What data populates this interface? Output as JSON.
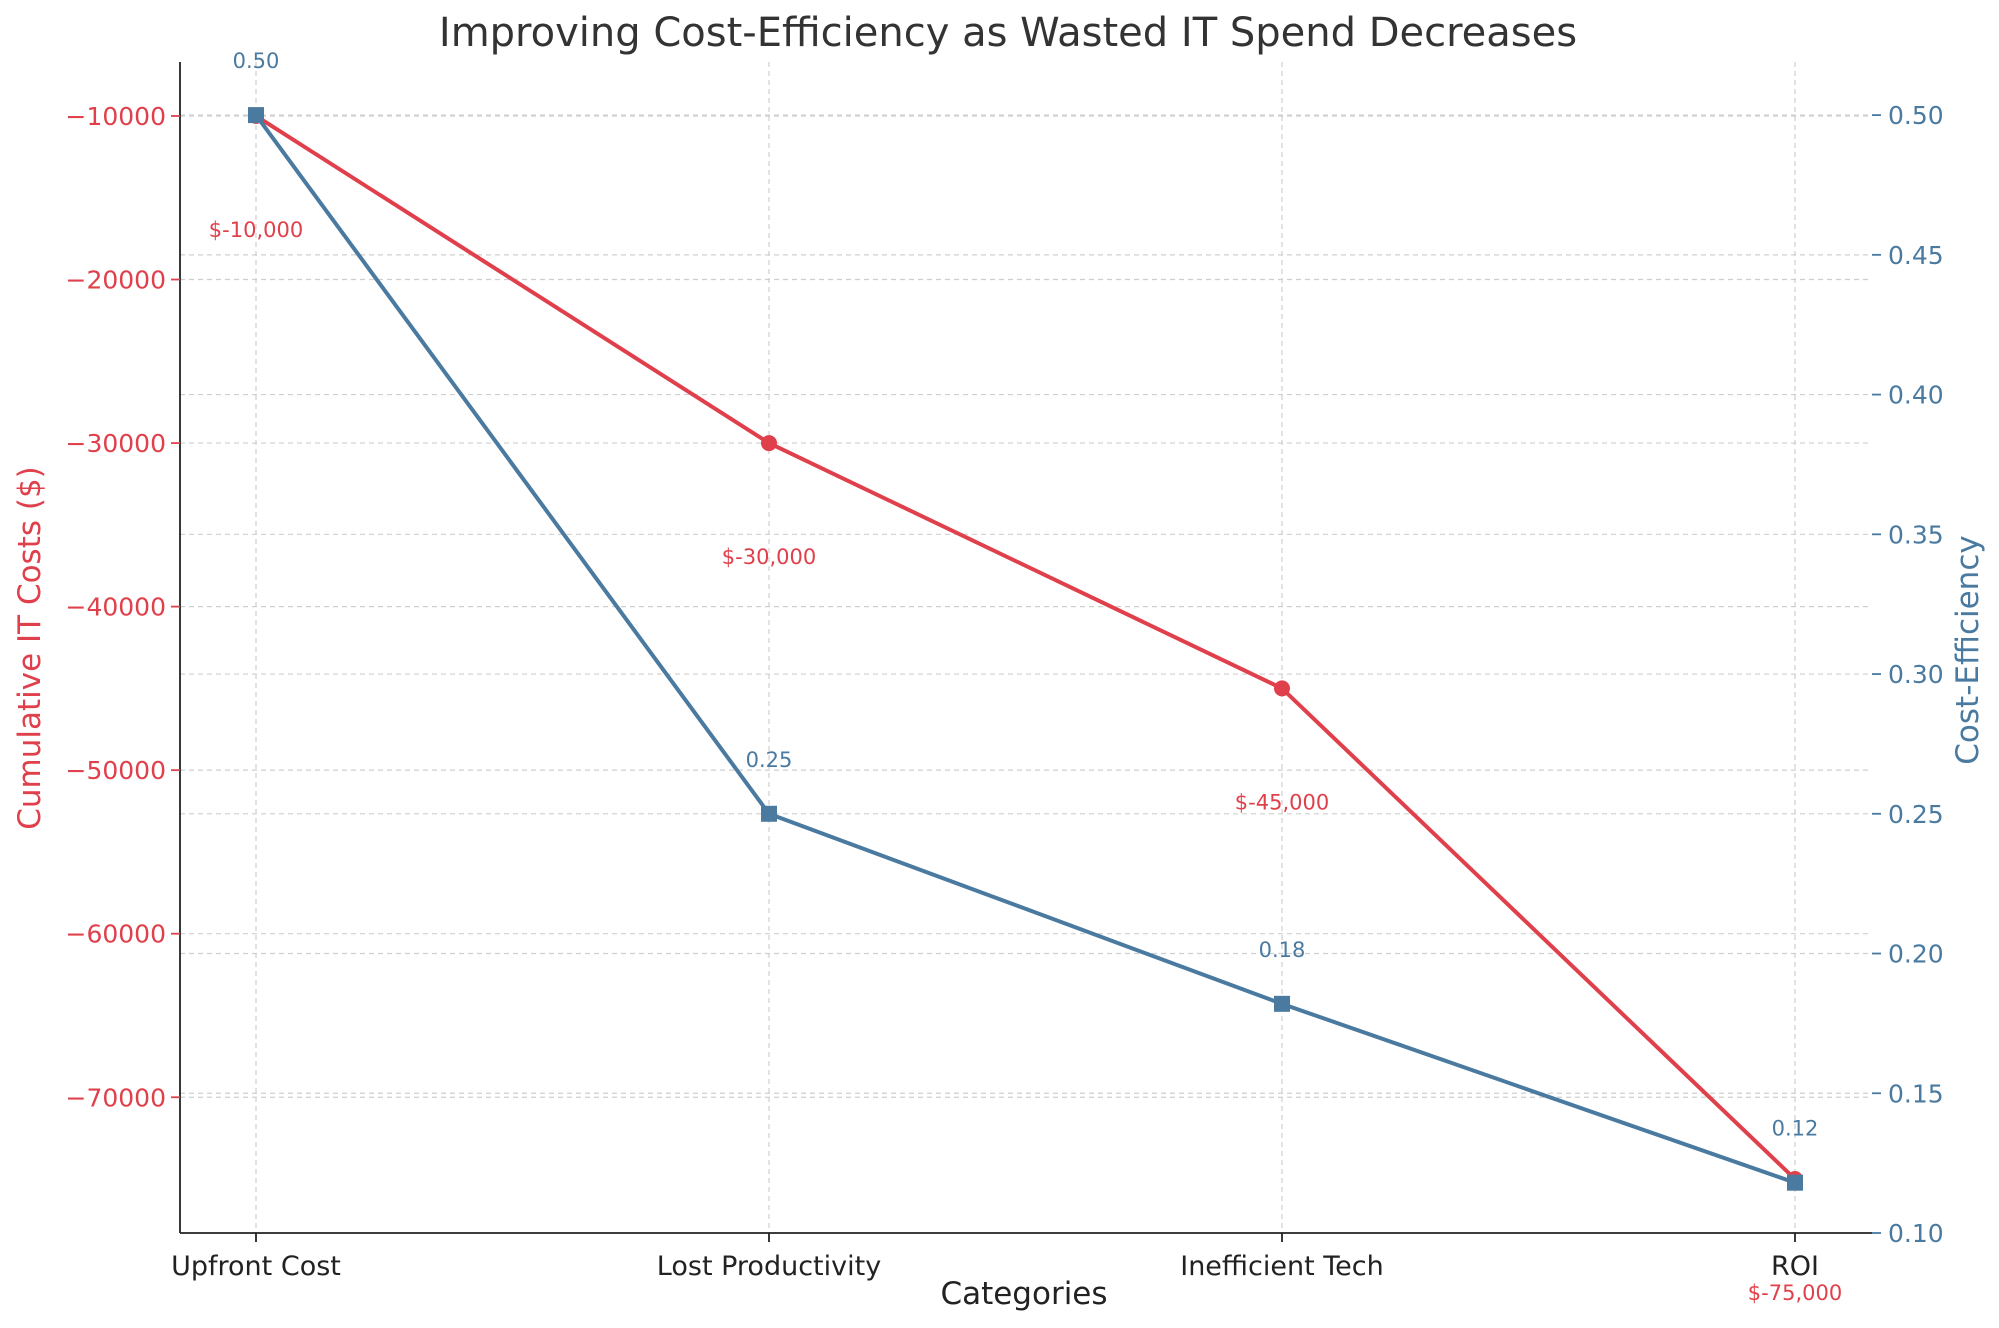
{
  "chart_data": {
    "type": "line",
    "title": "Improving Cost-Efficiency as Wasted IT Spend Decreases",
    "xlabel": "Categories",
    "categories": [
      "Upfront Cost",
      "Lost Productivity",
      "Inefficient Tech",
      "ROI"
    ],
    "grid": true,
    "legend": "none",
    "left_axis": {
      "label": "Cumulative IT Costs ($)",
      "color": "#e0404b",
      "range": [
        -78300,
        -6700
      ],
      "ticks": [
        -10000,
        -20000,
        -30000,
        -40000,
        -50000,
        -60000,
        -70000
      ],
      "tick_labels": [
        "−10000",
        "−20000",
        "−30000",
        "−40000",
        "−50000",
        "−60000",
        "−70000"
      ]
    },
    "right_axis": {
      "label": "Cost-Efficiency",
      "color": "#4a7aa0",
      "range": [
        0.1,
        0.519
      ],
      "ticks": [
        0.5,
        0.45,
        0.4,
        0.35,
        0.3,
        0.25,
        0.2,
        0.15,
        0.1
      ],
      "tick_labels": [
        "0.50",
        "0.45",
        "0.40",
        "0.35",
        "0.30",
        "0.25",
        "0.20",
        "0.15",
        "0.10"
      ]
    },
    "series": [
      {
        "axis": "left",
        "color": "#e0404b",
        "marker": "circle",
        "values": [
          -10000,
          -30000,
          -45000,
          -75000
        ],
        "data_labels": [
          "$-10,000",
          "$-30,000",
          "$-45,000",
          "$-75,000"
        ]
      },
      {
        "axis": "right",
        "color": "#4a7aa0",
        "marker": "square",
        "values": [
          0.5,
          0.25,
          0.182,
          0.118
        ],
        "data_labels": [
          "0.50",
          "0.25",
          "0.18",
          "0.12"
        ]
      }
    ]
  }
}
